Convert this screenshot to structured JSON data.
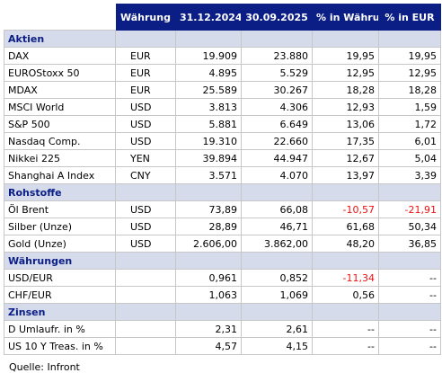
{
  "header": [
    "",
    "Währung",
    "31.12.2024",
    "30.09.2025",
    "% in Währung",
    "% in EUR"
  ],
  "sections": [
    {
      "title": "Aktien",
      "rows": [
        {
          "name": "DAX",
          "cur": "EUR",
          "v1": "19.909",
          "v2": "23.880",
          "p1": "19,95",
          "p2": "19,95",
          "neg1": false,
          "neg2": false
        },
        {
          "name": "EUROStoxx 50",
          "cur": "EUR",
          "v1": "4.895",
          "v2": "5.529",
          "p1": "12,95",
          "p2": "12,95",
          "neg1": false,
          "neg2": false
        },
        {
          "name": "MDAX",
          "cur": "EUR",
          "v1": "25.589",
          "v2": "30.267",
          "p1": "18,28",
          "p2": "18,28",
          "neg1": false,
          "neg2": false
        },
        {
          "name": "MSCI World",
          "cur": "USD",
          "v1": "3.813",
          "v2": "4.306",
          "p1": "12,93",
          "p2": "1,59",
          "neg1": false,
          "neg2": false
        },
        {
          "name": "S&P 500",
          "cur": "USD",
          "v1": "5.881",
          "v2": "6.649",
          "p1": "13,06",
          "p2": "1,72",
          "neg1": false,
          "neg2": false
        },
        {
          "name": "Nasdaq Comp.",
          "cur": "USD",
          "v1": "19.310",
          "v2": "22.660",
          "p1": "17,35",
          "p2": "6,01",
          "neg1": false,
          "neg2": false
        },
        {
          "name": "Nikkei 225",
          "cur": "YEN",
          "v1": "39.894",
          "v2": "44.947",
          "p1": "12,67",
          "p2": "5,04",
          "neg1": false,
          "neg2": false
        },
        {
          "name": "Shanghai A Index",
          "cur": "CNY",
          "v1": "3.571",
          "v2": "4.070",
          "p1": "13,97",
          "p2": "3,39",
          "neg1": false,
          "neg2": false
        }
      ]
    },
    {
      "title": "Rohstoffe",
      "rows": [
        {
          "name": "Öl Brent",
          "cur": "USD",
          "v1": "73,89",
          "v2": "66,08",
          "p1": "-10,57",
          "p2": "-21,91",
          "neg1": true,
          "neg2": true
        },
        {
          "name": "Silber (Unze)",
          "cur": "USD",
          "v1": "28,89",
          "v2": "46,71",
          "p1": "61,68",
          "p2": "50,34",
          "neg1": false,
          "neg2": false
        },
        {
          "name": "Gold (Unze)",
          "cur": "USD",
          "v1": "2.606,00",
          "v2": "3.862,00",
          "p1": "48,20",
          "p2": "36,85",
          "neg1": false,
          "neg2": false
        }
      ]
    },
    {
      "title": "Währungen",
      "rows": [
        {
          "name": "USD/EUR",
          "cur": "",
          "v1": "0,961",
          "v2": "0,852",
          "p1": "-11,34",
          "p2": "--",
          "neg1": true,
          "neg2": false
        },
        {
          "name": "CHF/EUR",
          "cur": "",
          "v1": "1,063",
          "v2": "1,069",
          "p1": "0,56",
          "p2": "--",
          "neg1": false,
          "neg2": false
        }
      ]
    },
    {
      "title": "Zinsen",
      "rows": [
        {
          "name": "D Umlaufr. in %",
          "cur": "",
          "v1": "2,31",
          "v2": "2,61",
          "p1": "--",
          "p2": "--",
          "neg1": false,
          "neg2": false
        },
        {
          "name": "US 10 Y Treas. in %",
          "cur": "",
          "v1": "4,57",
          "v2": "4,15",
          "p1": "--",
          "p2": "--",
          "neg1": false,
          "neg2": false
        }
      ]
    }
  ],
  "source": "Quelle: Infront",
  "colors": {
    "header_bg": "#0a1e85",
    "section_bg": "#d6dbeb",
    "negative": "#ee1111"
  }
}
